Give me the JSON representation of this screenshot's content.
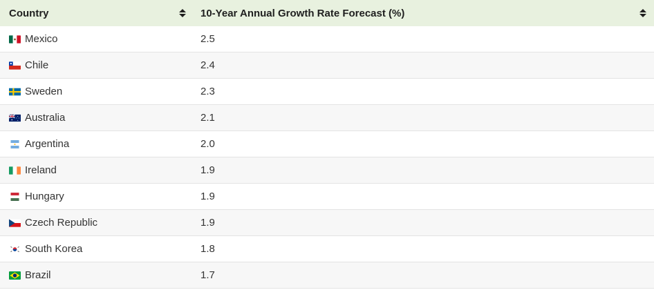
{
  "table": {
    "headers": {
      "country": "Country",
      "rate": "10-Year Annual Growth Rate Forecast (%)"
    },
    "rows": [
      {
        "country": "Mexico",
        "rate": "2.5",
        "flag": "mexico-flag-icon"
      },
      {
        "country": "Chile",
        "rate": "2.4",
        "flag": "chile-flag-icon"
      },
      {
        "country": "Sweden",
        "rate": "2.3",
        "flag": "sweden-flag-icon"
      },
      {
        "country": "Australia",
        "rate": "2.1",
        "flag": "australia-flag-icon"
      },
      {
        "country": "Argentina",
        "rate": "2.0",
        "flag": "argentina-flag-icon"
      },
      {
        "country": "Ireland",
        "rate": "1.9",
        "flag": "ireland-flag-icon"
      },
      {
        "country": "Hungary",
        "rate": "1.9",
        "flag": "hungary-flag-icon"
      },
      {
        "country": "Czech Republic",
        "rate": "1.9",
        "flag": "czech-republic-flag-icon"
      },
      {
        "country": "South Korea",
        "rate": "1.8",
        "flag": "south-korea-flag-icon"
      },
      {
        "country": "Brazil",
        "rate": "1.7",
        "flag": "brazil-flag-icon"
      }
    ]
  },
  "colors": {
    "header_bg": "#e8f1df",
    "row_alt_bg": "#f7f7f7",
    "border": "#e3e3e3"
  }
}
